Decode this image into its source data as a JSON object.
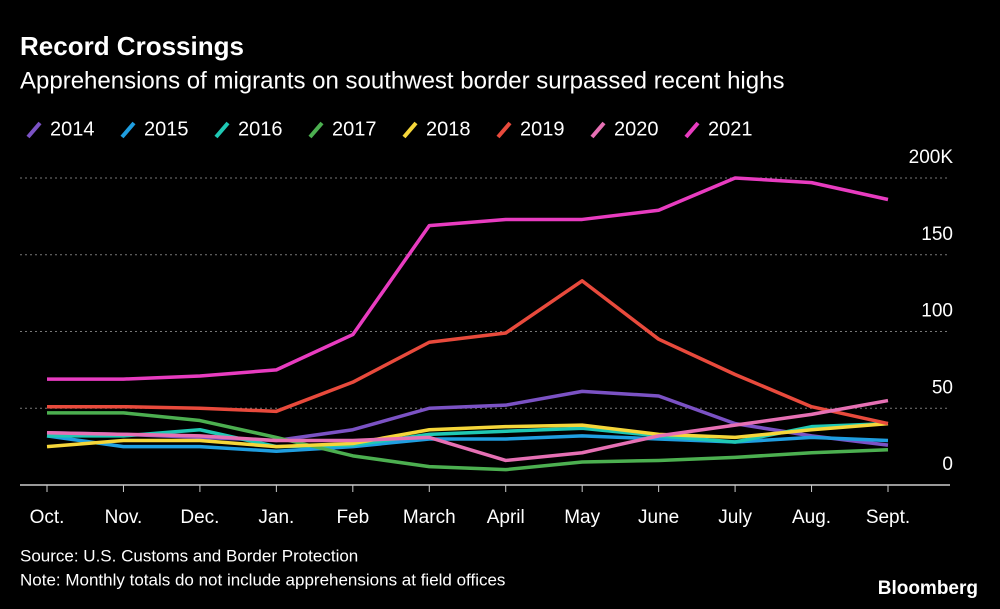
{
  "chart_data": {
    "type": "line",
    "title": "Record Crossings",
    "subtitle": "Apprehensions of migrants on southwest border surpassed recent highs",
    "categories": [
      "Oct.",
      "Nov.",
      "Dec.",
      "Jan.",
      "Feb",
      "March",
      "April",
      "May",
      "June",
      "July",
      "Aug.",
      "Sept."
    ],
    "series": [
      {
        "name": "2014",
        "color": "#7b52c4",
        "values": [
          34,
          33,
          31,
          29,
          36,
          50,
          52,
          61,
          58,
          40,
          32,
          26
        ]
      },
      {
        "name": "2015",
        "color": "#1f9ee0",
        "values": [
          32,
          25,
          25,
          22,
          25,
          30,
          30,
          32,
          30,
          28,
          31,
          29
        ]
      },
      {
        "name": "2016",
        "color": "#1fc8b4",
        "values": [
          32,
          32,
          36,
          25,
          26,
          33,
          35,
          37,
          32,
          28,
          38,
          40
        ]
      },
      {
        "name": "2017",
        "color": "#4caf50",
        "values": [
          47,
          47,
          42,
          31,
          19,
          12,
          10,
          15,
          16,
          18,
          21,
          23
        ]
      },
      {
        "name": "2018",
        "color": "#f5d63a",
        "values": [
          25,
          29,
          29,
          25,
          27,
          36,
          38,
          39,
          33,
          31,
          36,
          40
        ]
      },
      {
        "name": "2019",
        "color": "#e84a3c",
        "values": [
          51,
          51,
          50,
          48,
          67,
          93,
          99,
          133,
          95,
          72,
          51,
          40
        ]
      },
      {
        "name": "2020",
        "color": "#e670b4",
        "values": [
          34,
          33,
          32,
          29,
          29,
          31,
          16,
          21,
          32,
          39,
          46,
          55
        ]
      },
      {
        "name": "2021",
        "color": "#e83cc0",
        "values": [
          69,
          69,
          71,
          75,
          98,
          169,
          173,
          173,
          179,
          200,
          197,
          186
        ]
      }
    ],
    "ylim": [
      0,
      200
    ],
    "yticks": [
      0,
      50,
      100,
      150,
      {
        "value": 200,
        "label": "200K"
      }
    ],
    "grid": true,
    "source": "Source: U.S. Customs and Border Protection",
    "note": "Note: Monthly totals do not include apprehensions at field offices",
    "brand": "Bloomberg"
  }
}
